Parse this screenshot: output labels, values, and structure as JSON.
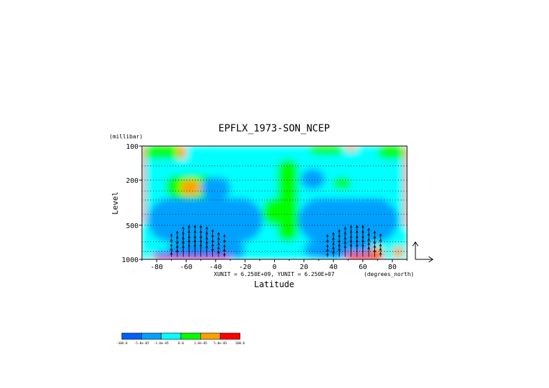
{
  "chart_data": {
    "type": "heatmap",
    "title": "EPFLX_1973-SON_NCEP",
    "xlabel": "Latitude",
    "ylabel": "Level",
    "y_units": "(millibar)",
    "x_units": "(degrees_north)",
    "vector_scale_note": "XUNIT = 6.250E+09, YUNIT = 6.250E+07",
    "xlim": [
      -90,
      90
    ],
    "x_ticks": [
      -80,
      -60,
      -40,
      -20,
      0,
      20,
      40,
      60,
      80
    ],
    "y_scale": "log",
    "ylim": [
      1000,
      100
    ],
    "y_ticks": [
      100,
      200,
      500,
      1000
    ],
    "dotted_levels": [
      150,
      200,
      250,
      300,
      400,
      500,
      700,
      850
    ],
    "legend": {
      "placement": "bottom-left",
      "levels": [
        "-100.0",
        "-5.0e-05",
        "-1.0e-05",
        "0.0",
        "1.0e-05",
        "5.0e-05",
        "100.0"
      ],
      "colors": [
        "#0060ff",
        "#00a0ff",
        "#00ffff",
        "#00ff00",
        "#ffa000",
        "#ff0000"
      ]
    },
    "field_regions": [
      {
        "category": 2,
        "lat": [
          -90,
          90
        ],
        "p": [
          100,
          1000
        ]
      },
      {
        "category": 3,
        "lat": [
          -88,
          -62
        ],
        "p": [
          100,
          130
        ]
      },
      {
        "category": 3,
        "lat": [
          -74,
          -40
        ],
        "p": [
          180,
          290
        ]
      },
      {
        "category": 3,
        "lat": [
          2,
          16
        ],
        "p": [
          130,
          700
        ]
      },
      {
        "category": 3,
        "lat": [
          -8,
          8
        ],
        "p": [
          290,
          500
        ]
      },
      {
        "category": 3,
        "lat": [
          40,
          52
        ],
        "p": [
          190,
          240
        ]
      },
      {
        "category": 3,
        "lat": [
          70,
          88
        ],
        "p": [
          100,
          130
        ]
      },
      {
        "category": 3,
        "lat": [
          24,
          46
        ],
        "p": [
          100,
          120
        ]
      },
      {
        "category": 4,
        "lat": [
          -66,
          -60
        ],
        "p": [
          100,
          130
        ]
      },
      {
        "category": 4,
        "lat": [
          -64,
          -50
        ],
        "p": [
          200,
          270
        ]
      },
      {
        "category": 4,
        "lat": [
          48,
          56
        ],
        "p": [
          100,
          110
        ]
      },
      {
        "category": 4,
        "lat": [
          54,
          74
        ],
        "p": [
          780,
          950
        ]
      },
      {
        "category": 4,
        "lat": [
          80,
          88
        ],
        "p": [
          780,
          950
        ]
      },
      {
        "category": 4,
        "lat": [
          -84,
          -70
        ],
        "p": [
          900,
          980
        ]
      },
      {
        "category": 1,
        "lat": [
          -86,
          -8
        ],
        "p": [
          290,
          700
        ]
      },
      {
        "category": 1,
        "lat": [
          -72,
          -20
        ],
        "p": [
          700,
          980
        ]
      },
      {
        "category": 1,
        "lat": [
          16,
          84
        ],
        "p": [
          290,
          700
        ]
      },
      {
        "category": 1,
        "lat": [
          20,
          66
        ],
        "p": [
          700,
          950
        ]
      },
      {
        "category": 1,
        "lat": [
          -50,
          -30
        ],
        "p": [
          190,
          290
        ]
      },
      {
        "category": 1,
        "lat": [
          18,
          34
        ],
        "p": [
          160,
          240
        ]
      },
      {
        "category": 0,
        "lat": [
          -82,
          -30
        ],
        "p": [
          850,
          980
        ]
      },
      {
        "category": 0,
        "lat": [
          30,
          60
        ],
        "p": [
          870,
          950
        ]
      },
      {
        "category": 5,
        "lat": [
          -80,
          -30
        ],
        "p": [
          950,
          1000
        ]
      },
      {
        "category": 5,
        "lat": [
          48,
          74
        ],
        "p": [
          880,
          1000
        ]
      },
      {
        "category": 5,
        "lat": [
          -90,
          -88
        ],
        "p": [
          100,
          480
        ]
      },
      {
        "category": 5,
        "lat": [
          88,
          90
        ],
        "p": [
          100,
          520
        ]
      }
    ],
    "arrow_rows_mb": [
      650,
      720,
      800,
      870,
      950
    ],
    "arrow_cols": [
      {
        "lat": -70,
        "len": 6
      },
      {
        "lat": -66,
        "len": 10
      },
      {
        "lat": -62,
        "len": 16
      },
      {
        "lat": -58,
        "len": 20
      },
      {
        "lat": -54,
        "len": 20
      },
      {
        "lat": -50,
        "len": 18
      },
      {
        "lat": -46,
        "len": 16
      },
      {
        "lat": -42,
        "len": 12
      },
      {
        "lat": -38,
        "len": 8
      },
      {
        "lat": -34,
        "len": 5
      },
      {
        "lat": 36,
        "len": 5
      },
      {
        "lat": 40,
        "len": 8
      },
      {
        "lat": 44,
        "len": 12
      },
      {
        "lat": 48,
        "len": 16
      },
      {
        "lat": 52,
        "len": 20
      },
      {
        "lat": 56,
        "len": 20
      },
      {
        "lat": 60,
        "len": 18
      },
      {
        "lat": 64,
        "len": 14
      },
      {
        "lat": 68,
        "len": 10
      },
      {
        "lat": 72,
        "len": 6
      }
    ]
  }
}
